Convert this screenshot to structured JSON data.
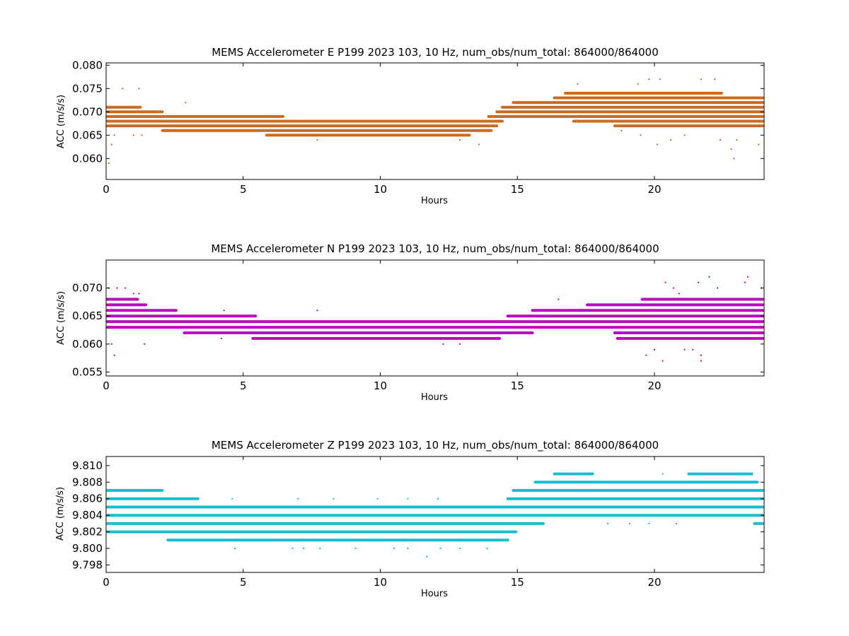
{
  "chart_data": [
    {
      "type": "scatter",
      "title": "MEMS Accelerometer E P199 2023 103, 10 Hz, num_obs/num_total: 864000/864000",
      "xlabel": "Hours",
      "ylabel": "ACC (m/s/s)",
      "xlim": [
        0,
        24
      ],
      "ylim": [
        0.0555,
        0.0805
      ],
      "x_ticks": [
        0,
        5,
        10,
        15,
        20
      ],
      "x_tick_labels": [
        "0",
        "5",
        "10",
        "15",
        "20"
      ],
      "y_ticks": [
        0.06,
        0.065,
        0.07,
        0.075,
        0.08
      ],
      "y_tick_labels": [
        "0.060",
        "0.065",
        "0.070",
        "0.075",
        "0.080"
      ],
      "grid": false,
      "color": "#cc6a1f",
      "bands": [
        {
          "y": 0.074,
          "x": [
            16.7,
            22.5
          ]
        },
        {
          "y": 0.073,
          "x": [
            16.3,
            24.0
          ]
        },
        {
          "y": 0.072,
          "x": [
            14.8,
            24.0
          ]
        },
        {
          "y": 0.071,
          "x": [
            0.0,
            1.3
          ]
        },
        {
          "y": 0.071,
          "x": [
            14.4,
            24.0
          ]
        },
        {
          "y": 0.07,
          "x": [
            0.0,
            2.1
          ]
        },
        {
          "y": 0.07,
          "x": [
            14.2,
            24.0
          ]
        },
        {
          "y": 0.069,
          "x": [
            0.0,
            6.5
          ]
        },
        {
          "y": 0.069,
          "x": [
            13.9,
            24.0
          ]
        },
        {
          "y": 0.068,
          "x": [
            0.0,
            14.5
          ]
        },
        {
          "y": 0.068,
          "x": [
            17.0,
            24.0
          ]
        },
        {
          "y": 0.067,
          "x": [
            0.0,
            14.3
          ]
        },
        {
          "y": 0.067,
          "x": [
            18.5,
            24.0
          ]
        },
        {
          "y": 0.066,
          "x": [
            2.0,
            14.1
          ]
        },
        {
          "y": 0.065,
          "x": [
            5.8,
            13.3
          ]
        }
      ],
      "scatter_points": [
        {
          "x": 0.1,
          "y": 0.059
        },
        {
          "x": 0.2,
          "y": 0.063
        },
        {
          "x": 0.3,
          "y": 0.065
        },
        {
          "x": 0.6,
          "y": 0.075
        },
        {
          "x": 1.2,
          "y": 0.075
        },
        {
          "x": 1.0,
          "y": 0.065
        },
        {
          "x": 1.3,
          "y": 0.065
        },
        {
          "x": 2.9,
          "y": 0.072
        },
        {
          "x": 7.2,
          "y": 0.065
        },
        {
          "x": 7.7,
          "y": 0.064
        },
        {
          "x": 12.9,
          "y": 0.064
        },
        {
          "x": 13.6,
          "y": 0.063
        },
        {
          "x": 17.2,
          "y": 0.076
        },
        {
          "x": 19.4,
          "y": 0.076
        },
        {
          "x": 19.8,
          "y": 0.077
        },
        {
          "x": 20.2,
          "y": 0.077
        },
        {
          "x": 21.7,
          "y": 0.077
        },
        {
          "x": 22.2,
          "y": 0.077
        },
        {
          "x": 20.1,
          "y": 0.063
        },
        {
          "x": 20.6,
          "y": 0.064
        },
        {
          "x": 22.4,
          "y": 0.064
        },
        {
          "x": 22.8,
          "y": 0.062
        },
        {
          "x": 22.9,
          "y": 0.06
        },
        {
          "x": 23.8,
          "y": 0.063
        },
        {
          "x": 18.8,
          "y": 0.066
        },
        {
          "x": 19.5,
          "y": 0.065
        },
        {
          "x": 21.1,
          "y": 0.065
        },
        {
          "x": 23.0,
          "y": 0.064
        }
      ]
    },
    {
      "type": "scatter",
      "title": "MEMS Accelerometer N P199 2023 103, 10 Hz, num_obs/num_total: 864000/864000",
      "xlabel": "Hours",
      "ylabel": "ACC (m/s/s)",
      "xlim": [
        0,
        24
      ],
      "ylim": [
        0.0543,
        0.075
      ],
      "x_ticks": [
        0,
        5,
        10,
        15,
        20
      ],
      "x_tick_labels": [
        "0",
        "5",
        "10",
        "15",
        "20"
      ],
      "y_ticks": [
        0.055,
        0.06,
        0.065,
        0.07
      ],
      "y_tick_labels": [
        "0.055",
        "0.060",
        "0.065",
        "0.070"
      ],
      "grid": false,
      "color": "#bf00bf",
      "bands": [
        {
          "y": 0.068,
          "x": [
            0.0,
            1.2
          ]
        },
        {
          "y": 0.068,
          "x": [
            19.5,
            24.0
          ]
        },
        {
          "y": 0.067,
          "x": [
            0.0,
            1.5
          ]
        },
        {
          "y": 0.067,
          "x": [
            17.5,
            24.0
          ]
        },
        {
          "y": 0.066,
          "x": [
            0.0,
            2.6
          ]
        },
        {
          "y": 0.066,
          "x": [
            15.5,
            24.0
          ]
        },
        {
          "y": 0.065,
          "x": [
            0.0,
            5.5
          ]
        },
        {
          "y": 0.065,
          "x": [
            14.6,
            24.0
          ]
        },
        {
          "y": 0.064,
          "x": [
            0.0,
            24.0
          ]
        },
        {
          "y": 0.063,
          "x": [
            0.0,
            24.0
          ]
        },
        {
          "y": 0.062,
          "x": [
            2.8,
            15.6
          ]
        },
        {
          "y": 0.062,
          "x": [
            18.5,
            24.0
          ]
        },
        {
          "y": 0.061,
          "x": [
            5.3,
            14.4
          ]
        },
        {
          "y": 0.061,
          "x": [
            18.6,
            24.0
          ]
        }
      ],
      "scatter_points": [
        {
          "x": 0.1,
          "y": 0.07
        },
        {
          "x": 0.4,
          "y": 0.07
        },
        {
          "x": 0.7,
          "y": 0.07
        },
        {
          "x": 1.0,
          "y": 0.069
        },
        {
          "x": 1.2,
          "y": 0.069
        },
        {
          "x": 0.3,
          "y": 0.058
        },
        {
          "x": 0.2,
          "y": 0.06
        },
        {
          "x": 1.4,
          "y": 0.06
        },
        {
          "x": 4.3,
          "y": 0.066
        },
        {
          "x": 4.2,
          "y": 0.061
        },
        {
          "x": 7.7,
          "y": 0.066
        },
        {
          "x": 12.3,
          "y": 0.06
        },
        {
          "x": 12.9,
          "y": 0.06
        },
        {
          "x": 16.5,
          "y": 0.068
        },
        {
          "x": 19.7,
          "y": 0.058
        },
        {
          "x": 20.0,
          "y": 0.059
        },
        {
          "x": 20.3,
          "y": 0.057
        },
        {
          "x": 21.1,
          "y": 0.059
        },
        {
          "x": 21.4,
          "y": 0.059
        },
        {
          "x": 21.7,
          "y": 0.057
        },
        {
          "x": 21.7,
          "y": 0.058
        },
        {
          "x": 20.4,
          "y": 0.071
        },
        {
          "x": 20.7,
          "y": 0.07
        },
        {
          "x": 21.6,
          "y": 0.071
        },
        {
          "x": 22.0,
          "y": 0.072
        },
        {
          "x": 22.3,
          "y": 0.07
        },
        {
          "x": 23.4,
          "y": 0.072
        },
        {
          "x": 23.3,
          "y": 0.071
        },
        {
          "x": 20.9,
          "y": 0.069
        },
        {
          "x": 23.9,
          "y": 0.07
        }
      ]
    },
    {
      "type": "scatter",
      "title": "MEMS Accelerometer Z P199 2023 103, 10 Hz, num_obs/num_total: 864000/864000",
      "xlabel": "Hours",
      "ylabel": "ACC (m/s/s)",
      "xlim": [
        0,
        24
      ],
      "ylim": [
        9.7971,
        9.8111
      ],
      "x_ticks": [
        0,
        5,
        10,
        15,
        20
      ],
      "x_tick_labels": [
        "0",
        "5",
        "10",
        "15",
        "20"
      ],
      "y_ticks": [
        9.798,
        9.8,
        9.802,
        9.804,
        9.806,
        9.808,
        9.81
      ],
      "y_tick_labels": [
        "9.798",
        "9.800",
        "9.802",
        "9.804",
        "9.806",
        "9.808",
        "9.810"
      ],
      "grid": false,
      "color": "#17becf",
      "bands": [
        {
          "y": 9.809,
          "x": [
            16.3,
            17.8
          ]
        },
        {
          "y": 9.809,
          "x": [
            21.2,
            23.6
          ]
        },
        {
          "y": 9.808,
          "x": [
            15.6,
            23.8
          ]
        },
        {
          "y": 9.807,
          "x": [
            0.0,
            2.1
          ]
        },
        {
          "y": 9.807,
          "x": [
            14.8,
            24.0
          ]
        },
        {
          "y": 9.806,
          "x": [
            0.0,
            3.4
          ]
        },
        {
          "y": 9.806,
          "x": [
            14.6,
            24.0
          ]
        },
        {
          "y": 9.805,
          "x": [
            0.0,
            24.0
          ]
        },
        {
          "y": 9.804,
          "x": [
            0.0,
            24.0
          ]
        },
        {
          "y": 9.803,
          "x": [
            0.0,
            16.0
          ]
        },
        {
          "y": 9.803,
          "x": [
            23.6,
            24.0
          ]
        },
        {
          "y": 9.802,
          "x": [
            0.0,
            15.0
          ]
        },
        {
          "y": 9.801,
          "x": [
            2.2,
            14.7
          ]
        }
      ],
      "scatter_points": [
        {
          "x": 4.7,
          "y": 9.8
        },
        {
          "x": 6.8,
          "y": 9.8
        },
        {
          "x": 7.2,
          "y": 9.8
        },
        {
          "x": 7.8,
          "y": 9.8
        },
        {
          "x": 9.1,
          "y": 9.8
        },
        {
          "x": 10.5,
          "y": 9.8
        },
        {
          "x": 11.0,
          "y": 9.8
        },
        {
          "x": 11.7,
          "y": 9.799
        },
        {
          "x": 12.2,
          "y": 9.8
        },
        {
          "x": 12.9,
          "y": 9.8
        },
        {
          "x": 13.9,
          "y": 9.8
        },
        {
          "x": 15.6,
          "y": 9.803
        },
        {
          "x": 18.3,
          "y": 9.803
        },
        {
          "x": 19.1,
          "y": 9.803
        },
        {
          "x": 19.8,
          "y": 9.803
        },
        {
          "x": 20.8,
          "y": 9.803
        },
        {
          "x": 20.3,
          "y": 9.809
        },
        {
          "x": 4.6,
          "y": 9.806
        },
        {
          "x": 7.0,
          "y": 9.806
        },
        {
          "x": 8.3,
          "y": 9.806
        },
        {
          "x": 9.9,
          "y": 9.806
        },
        {
          "x": 11.0,
          "y": 9.806
        },
        {
          "x": 12.1,
          "y": 9.806
        }
      ]
    }
  ]
}
